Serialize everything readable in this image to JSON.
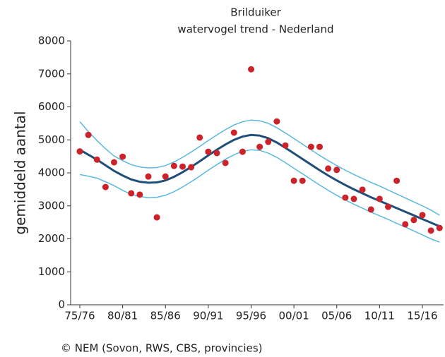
{
  "chart_data": {
    "type": "trend",
    "title": "Brilduiker",
    "subtitle": "watervogel trend - Nederland",
    "y_label": "gemiddeld aantal",
    "source": "© NEM (Sovon, RWS, CBS, provincies)",
    "categories": [
      "75/76",
      null,
      null,
      null,
      null,
      "80/81",
      null,
      null,
      null,
      null,
      "85/86",
      null,
      null,
      null,
      null,
      "90/91",
      null,
      null,
      null,
      null,
      "95/96",
      null,
      null,
      null,
      null,
      "00/01",
      null,
      null,
      null,
      null,
      "05/06",
      null,
      null,
      null,
      null,
      "10/11",
      null,
      null,
      null,
      null,
      "15/16",
      null,
      null
    ],
    "ylim": [
      0,
      8000
    ],
    "yticks": [
      0,
      1000,
      2000,
      3000,
      4000,
      5000,
      6000,
      7000,
      8000
    ],
    "series": [
      {
        "type": "band",
        "color": "#5bb8e0",
        "values": [
          5550,
          5250,
          4980,
          4730,
          4510,
          4370,
          4250,
          4180,
          4150,
          4160,
          4220,
          4330,
          4470,
          4630,
          4800,
          4980,
          5150,
          5310,
          5450,
          5550,
          5600,
          5580,
          5500,
          5370,
          5210,
          5040,
          4870,
          4700,
          4530,
          4370,
          4220,
          4080,
          3950,
          3830,
          3710,
          3600,
          3480,
          3360,
          3240,
          3120,
          3000,
          2870,
          2720
        ]
      },
      {
        "type": "band",
        "color": "#5bb8e0",
        "values": [
          3950,
          3900,
          3840,
          3730,
          3610,
          3470,
          3350,
          3280,
          3250,
          3260,
          3320,
          3430,
          3570,
          3730,
          3900,
          4080,
          4250,
          4410,
          4550,
          4650,
          4700,
          4680,
          4600,
          4470,
          4310,
          4140,
          3970,
          3800,
          3630,
          3470,
          3320,
          3180,
          3050,
          2930,
          2810,
          2700,
          2590,
          2470,
          2360,
          2240,
          2120,
          2000,
          1900
        ]
      },
      {
        "type": "line",
        "color": "#1f4e79",
        "values": [
          4700,
          4550,
          4400,
          4230,
          4060,
          3920,
          3800,
          3730,
          3700,
          3710,
          3770,
          3880,
          4020,
          4180,
          4350,
          4530,
          4700,
          4860,
          5000,
          5100,
          5150,
          5130,
          5050,
          4920,
          4760,
          4590,
          4420,
          4250,
          4080,
          3920,
          3770,
          3630,
          3500,
          3380,
          3260,
          3150,
          3040,
          2930,
          2820,
          2710,
          2600,
          2490,
          2380
        ]
      },
      {
        "type": "scatter",
        "color": "#cc2229",
        "values": [
          4650,
          5150,
          4400,
          3570,
          4320,
          4490,
          3380,
          3340,
          3890,
          2650,
          3890,
          4210,
          4190,
          4170,
          5070,
          4640,
          4600,
          4300,
          5220,
          4640,
          7140,
          4790,
          4940,
          5560,
          4830,
          3760,
          3760,
          4790,
          4790,
          4130,
          4090,
          3250,
          3210,
          3490,
          2890,
          3210,
          2970,
          3760,
          2440,
          2570,
          2720,
          2250,
          2330
        ]
      }
    ]
  }
}
